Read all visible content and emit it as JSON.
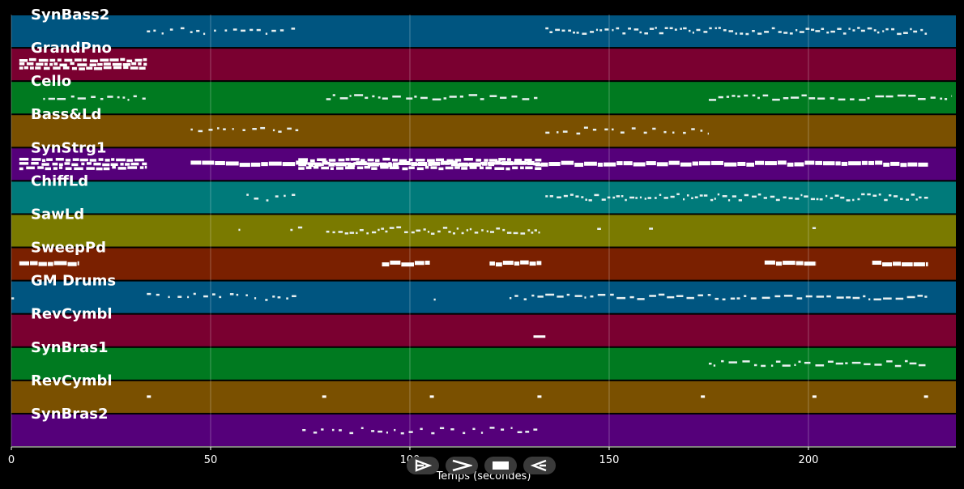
{
  "chart_data": {
    "type": "piano-roll",
    "xlabel": "Temps (secondes)",
    "xlim": [
      0,
      237
    ],
    "xticks": [
      0,
      50,
      100,
      150,
      200
    ],
    "grid": true,
    "tracks": [
      {
        "name": "SynBass2",
        "color": "#005580",
        "notes": [
          [
            34,
            72,
            "sparse"
          ],
          [
            134,
            230,
            "dense"
          ]
        ]
      },
      {
        "name": "GrandPno",
        "color": "#7a0030",
        "notes": [
          [
            2,
            34,
            "chord"
          ]
        ]
      },
      {
        "name": "Cello",
        "color": "#007a20",
        "notes": [
          [
            8,
            34,
            "medium"
          ],
          [
            79,
            132,
            "medium"
          ],
          [
            175,
            236,
            "medium"
          ]
        ]
      },
      {
        "name": "Bass&Ld",
        "color": "#7a5000",
        "notes": [
          [
            45,
            72,
            "sparse"
          ],
          [
            134,
            175,
            "sparse"
          ]
        ]
      },
      {
        "name": "SynStrg1",
        "color": "#55007a",
        "notes": [
          [
            2,
            34,
            "chord"
          ],
          [
            45,
            230,
            "thick"
          ],
          [
            72,
            133,
            "chord"
          ]
        ]
      },
      {
        "name": "ChiffLd",
        "color": "#007a7a",
        "notes": [
          [
            59,
            72,
            "sparse"
          ],
          [
            134,
            230,
            "dense"
          ]
        ]
      },
      {
        "name": "SawLd",
        "color": "#7a7a00",
        "notes": [
          [
            57,
            59,
            "sparse"
          ],
          [
            70,
            73,
            "sparse"
          ],
          [
            79,
            133,
            "dense"
          ],
          [
            147,
            148,
            "sparse"
          ],
          [
            160,
            161,
            "sparse"
          ],
          [
            201,
            202,
            "sparse"
          ]
        ]
      },
      {
        "name": "SweepPd",
        "color": "#7a2000",
        "notes": [
          [
            2,
            17,
            "thick"
          ],
          [
            93,
            105,
            "thick"
          ],
          [
            120,
            133,
            "thick"
          ],
          [
            189,
            202,
            "thick"
          ],
          [
            216,
            230,
            "thick"
          ]
        ]
      },
      {
        "name": "GM Drums",
        "color": "#005580",
        "notes": [
          [
            0,
            1,
            "sparse"
          ],
          [
            34,
            72,
            "sparse"
          ],
          [
            106,
            107,
            "sparse"
          ],
          [
            125,
            230,
            "medium"
          ]
        ]
      },
      {
        "name": "RevCymbl",
        "color": "#7a0030",
        "notes": [
          [
            131,
            134,
            "single"
          ]
        ]
      },
      {
        "name": "SynBras1",
        "color": "#007a20",
        "notes": [
          [
            175,
            230,
            "medium"
          ]
        ]
      },
      {
        "name": "RevCymbl",
        "color": "#7a5000",
        "notes": [
          [
            34,
            35,
            "single"
          ],
          [
            78,
            79,
            "single"
          ],
          [
            105,
            106,
            "single"
          ],
          [
            132,
            133,
            "single"
          ],
          [
            173,
            174,
            "single"
          ],
          [
            201,
            202,
            "single"
          ],
          [
            229,
            230,
            "single"
          ]
        ]
      },
      {
        "name": "SynBras2",
        "color": "#55007a",
        "notes": [
          [
            73,
            133,
            "sparse"
          ]
        ]
      }
    ]
  },
  "controls": {
    "button_1_icon": "play-outline-icon",
    "button_2_icon": "forward-icon",
    "button_3_icon": "stop-icon",
    "button_4_icon": "play-reverse-icon"
  }
}
